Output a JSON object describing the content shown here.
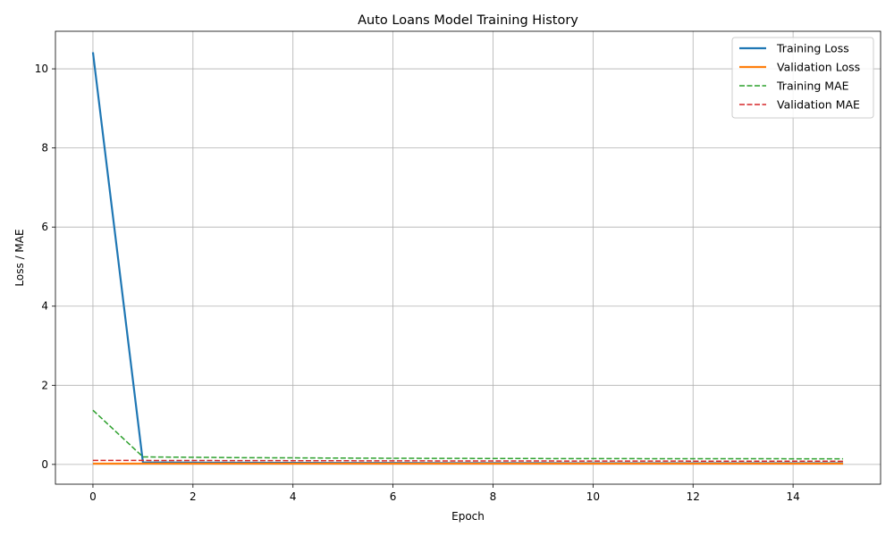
{
  "chart_data": {
    "type": "line",
    "title": "Auto Loans Model Training History",
    "xlabel": "Epoch",
    "ylabel": "Loss / MAE",
    "xlim": [
      -0.75,
      15.75
    ],
    "ylim": [
      -0.5,
      10.95
    ],
    "xticks": [
      0,
      2,
      4,
      6,
      8,
      10,
      12,
      14
    ],
    "yticks": [
      0,
      2,
      4,
      6,
      8,
      10
    ],
    "grid": true,
    "legend_position": "top-right",
    "x": [
      0,
      1,
      2,
      3,
      4,
      5,
      6,
      7,
      8,
      9,
      10,
      11,
      12,
      13,
      14,
      15
    ],
    "series": [
      {
        "name": "Training Loss",
        "color": "#1f77b4",
        "style": "solid",
        "values": [
          10.42,
          0.05,
          0.045,
          0.042,
          0.04,
          0.038,
          0.036,
          0.035,
          0.034,
          0.033,
          0.032,
          0.031,
          0.031,
          0.03,
          0.03,
          0.03
        ]
      },
      {
        "name": "Validation Loss",
        "color": "#ff7f0e",
        "style": "solid",
        "values": [
          0.02,
          0.02,
          0.02,
          0.02,
          0.02,
          0.02,
          0.02,
          0.02,
          0.02,
          0.02,
          0.02,
          0.02,
          0.02,
          0.02,
          0.02,
          0.02
        ]
      },
      {
        "name": "Training MAE",
        "color": "#2ca02c",
        "style": "dashed",
        "values": [
          1.37,
          0.19,
          0.18,
          0.17,
          0.165,
          0.16,
          0.155,
          0.152,
          0.15,
          0.148,
          0.146,
          0.145,
          0.144,
          0.143,
          0.142,
          0.141
        ]
      },
      {
        "name": "Validation MAE",
        "color": "#d62728",
        "style": "dashed",
        "values": [
          0.1,
          0.1,
          0.098,
          0.096,
          0.094,
          0.092,
          0.09,
          0.088,
          0.087,
          0.086,
          0.085,
          0.084,
          0.083,
          0.082,
          0.081,
          0.08
        ]
      }
    ]
  }
}
